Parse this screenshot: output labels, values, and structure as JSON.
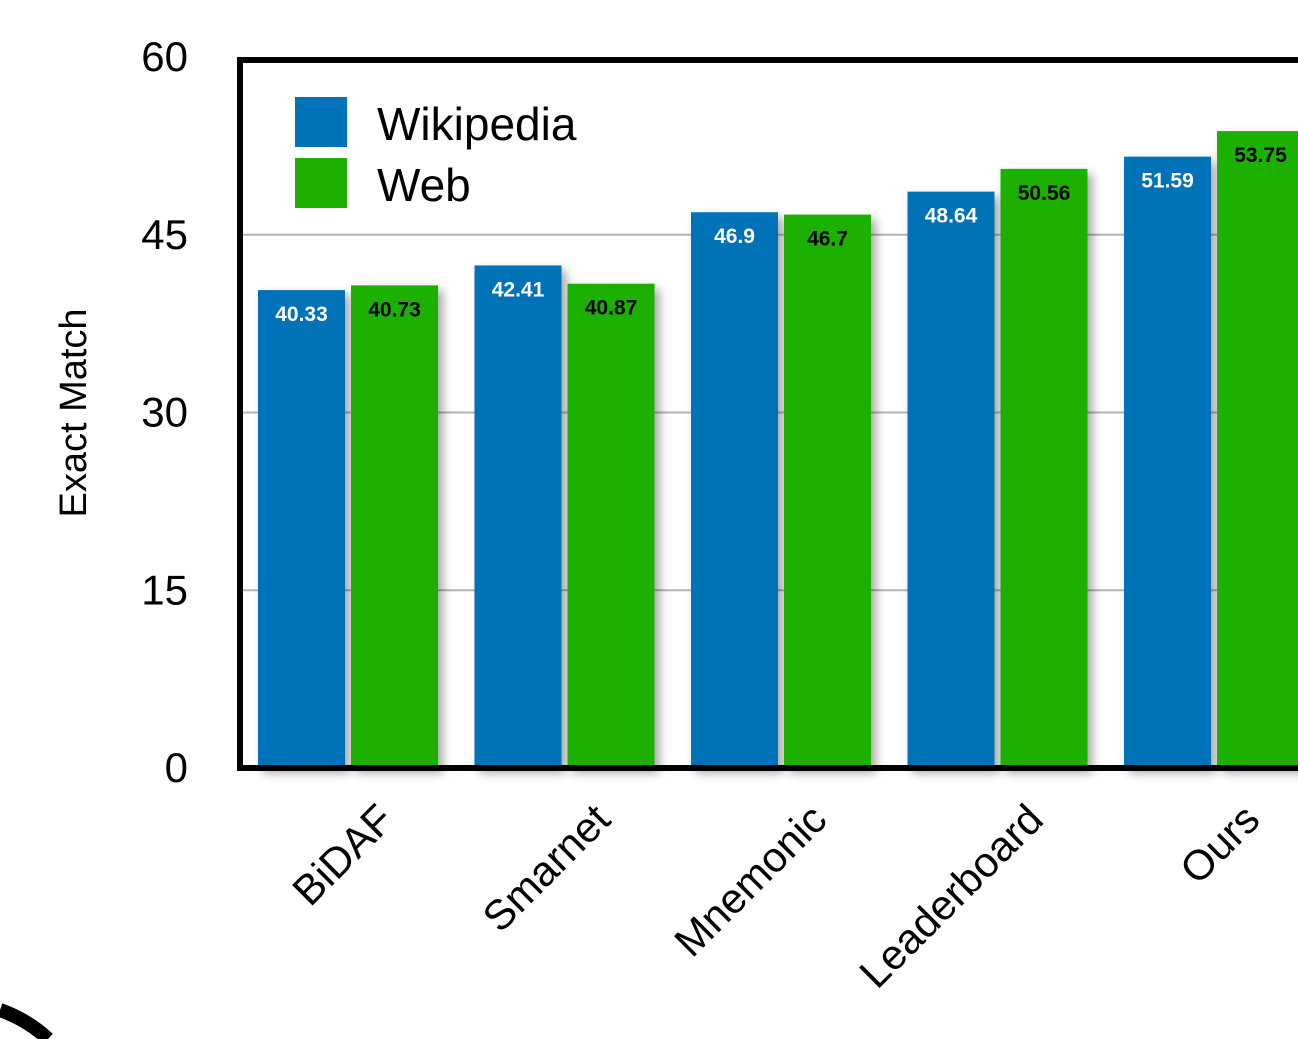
{
  "chart_data": {
    "type": "bar",
    "categories": [
      "BiDAF",
      "Smarnet",
      "Mnemonic",
      "Leaderboard",
      "Ours"
    ],
    "series": [
      {
        "name": "Wikipedia",
        "color": "#0072b8",
        "label_color": "#ffffff",
        "values": [
          40.33,
          42.41,
          46.9,
          48.64,
          51.59
        ]
      },
      {
        "name": "Web",
        "color": "#1db000",
        "label_color": "#000000",
        "values": [
          40.73,
          40.87,
          46.7,
          50.56,
          53.75
        ]
      }
    ],
    "value_labels": {
      "series_0": [
        "40.33",
        "42.41",
        "46.9",
        "48.64",
        "51.59"
      ],
      "series_1": [
        "40.73",
        "40.87",
        "46.7",
        "50.56",
        "53.75"
      ]
    },
    "xlabel": "",
    "ylabel": "Exact Match",
    "ylim": [
      0,
      60
    ],
    "yticks": [
      "0",
      "15",
      "30",
      "45",
      "60"
    ],
    "grid": true,
    "legend_position": "top-left"
  }
}
